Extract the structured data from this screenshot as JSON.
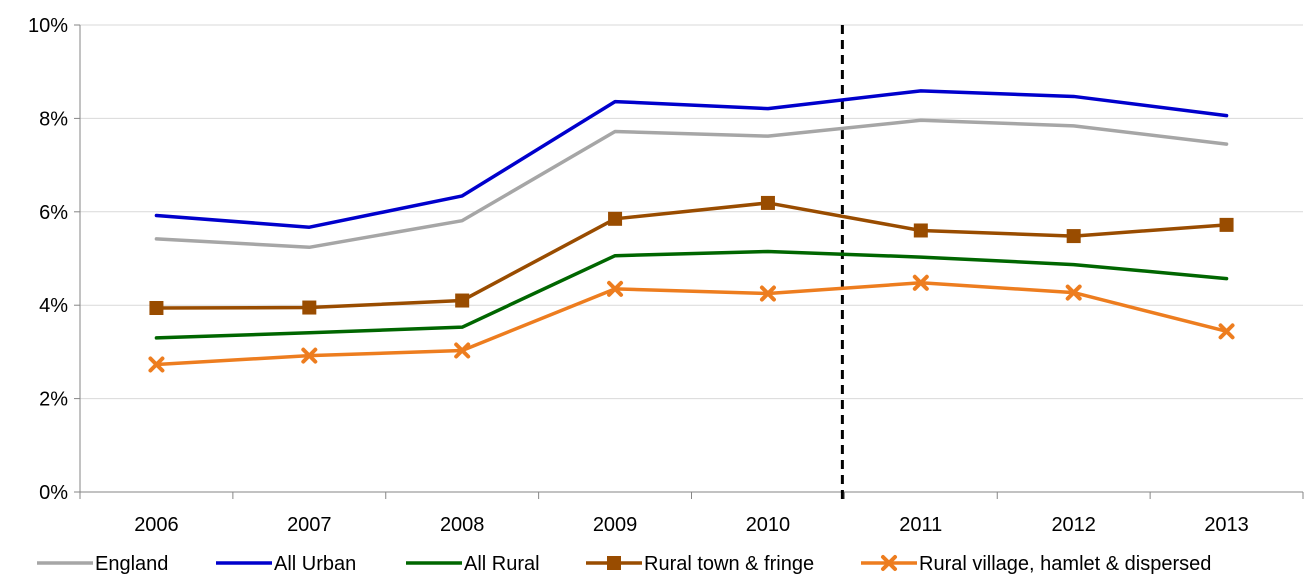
{
  "chart_data": {
    "type": "line",
    "categories": [
      "2006",
      "2007",
      "2008",
      "2009",
      "2010",
      "2011",
      "2012",
      "2013"
    ],
    "ylim": [
      0,
      10
    ],
    "yticks": [
      0,
      2,
      4,
      6,
      8,
      10
    ],
    "ytick_labels": [
      "0%",
      "2%",
      "4%",
      "6%",
      "8%",
      "10%"
    ],
    "grid": true,
    "legend_position": "bottom",
    "annotations": [
      {
        "type": "vertical-dashed-line",
        "between": [
          "2010",
          "2011"
        ]
      }
    ],
    "series": [
      {
        "name": "England",
        "color": "#a6a6a6",
        "marker": "none",
        "values": [
          5.42,
          5.24,
          5.81,
          7.72,
          7.62,
          7.96,
          7.84,
          7.45
        ]
      },
      {
        "name": "All Urban",
        "color": "#0000cc",
        "marker": "none",
        "values": [
          5.92,
          5.67,
          6.34,
          8.36,
          8.21,
          8.59,
          8.47,
          8.06
        ]
      },
      {
        "name": "All Rural",
        "color": "#006600",
        "marker": "none",
        "values": [
          3.3,
          3.41,
          3.53,
          5.06,
          5.15,
          5.03,
          4.87,
          4.57
        ]
      },
      {
        "name": "Rural town & fringe",
        "color": "#994c00",
        "marker": "square",
        "values": [
          3.94,
          3.95,
          4.1,
          5.85,
          6.19,
          5.6,
          5.48,
          5.72
        ]
      },
      {
        "name": "Rural village, hamlet & dispersed",
        "color": "#ed7d1f",
        "marker": "x",
        "values": [
          2.73,
          2.92,
          3.03,
          4.35,
          4.25,
          4.48,
          4.27,
          3.44
        ]
      }
    ]
  }
}
